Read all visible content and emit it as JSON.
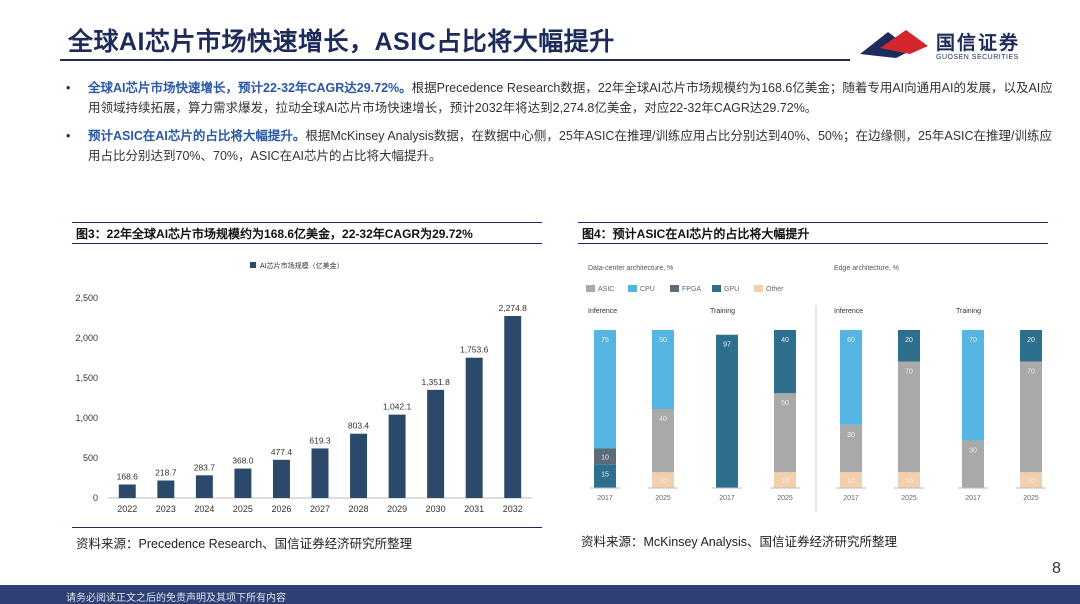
{
  "header": {
    "title": "全球AI芯片市场快速增长，ASIC占比将大幅提升",
    "logo_name": "国信证券",
    "logo_sub": "GUOSEN SECURITIES",
    "colors": {
      "navy": "#1c2b5a",
      "red": "#d6262d",
      "accent_blue": "#2a57a8"
    }
  },
  "bullets": [
    {
      "lead": "全球AI芯片市场快速增长，预计22-32年CAGR达29.72%。",
      "text": "根据Precedence Research数据，22年全球AI芯片市场规模约为168.6亿美金；随着专用AI向通用AI的发展，以及AI应用领域持续拓展，算力需求爆发，拉动全球AI芯片市场快速增长，预计2032年将达到2,274.8亿美金，对应22-32年CAGR达29.72%。"
    },
    {
      "lead": "预计ASIC在AI芯片的占比将大幅提升。",
      "text": "根据McKinsey Analysis数据，在数据中心侧，25年ASIC在推理/训练应用占比分别达到40%、50%；在边缘侧，25年ASIC在推理/训练应用占比分别达到70%、70%，ASIC在AI芯片的占比将大幅提升。"
    }
  ],
  "figure3": {
    "title": "图3：22年全球AI芯片市场规模约为168.6亿美金，22-32年CAGR为29.72%",
    "source": "资料来源：Precedence Research、国信证券经济研究所整理"
  },
  "figure4": {
    "title": "图4：预计ASIC在AI芯片的占比将大幅提升",
    "source": "资料来源：McKinsey Analysis、国信证券经济研究所整理"
  },
  "chart_data": [
    {
      "type": "bar",
      "categories": [
        "2022",
        "2023",
        "2024",
        "2025",
        "2026",
        "2027",
        "2028",
        "2029",
        "2030",
        "2031",
        "2032"
      ],
      "series": [
        {
          "name": "AI芯片市场规模（亿美金）",
          "values": [
            168.6,
            218.7,
            283.7,
            368.0,
            477.4,
            619.3,
            803.4,
            1042.1,
            1351.8,
            1753.6,
            2274.8
          ]
        }
      ],
      "data_labels": [
        "168.6",
        "218.7",
        "283.7",
        "368.0",
        "477.4",
        "619.3",
        "803.4",
        "1,042.1",
        "1,351.8",
        "1,753.6",
        "2,274.8"
      ],
      "ylim": [
        0,
        2500
      ],
      "yticks": [
        0,
        500,
        1000,
        1500,
        2000,
        2500
      ],
      "ytick_labels": [
        "0",
        "500",
        "1,000",
        "1,500",
        "2,000",
        "2,500"
      ],
      "grid": false,
      "legend": "top-center",
      "color": "#2b4a6b"
    },
    {
      "type": "bar",
      "stacked": true,
      "groups": [
        {
          "name": "Data-center architecture, %",
          "panels": [
            {
              "name": "Inference",
              "categories": [
                "2017",
                "2025"
              ],
              "segments": [
                {
                  "name": "ASIC",
                  "values": [
                    0,
                    40
                  ]
                },
                {
                  "name": "CPU",
                  "values": [
                    75,
                    50
                  ]
                },
                {
                  "name": "FPGA",
                  "values": [
                    10,
                    0
                  ]
                },
                {
                  "name": "GPU",
                  "values": [
                    15,
                    0
                  ]
                },
                {
                  "name": "Other",
                  "values": [
                    0,
                    10
                  ]
                }
              ],
              "labels": [
                [
                  "",
                  "75",
                  "10",
                  "15",
                  ""
                ],
                [
                  "40",
                  "50",
                  "",
                  "",
                  "10"
                ]
              ]
            },
            {
              "name": "Training",
              "categories": [
                "2017",
                "2025"
              ],
              "segments": [
                {
                  "name": "ASIC",
                  "values": [
                    0,
                    50
                  ]
                },
                {
                  "name": "CPU",
                  "values": [
                    0,
                    0
                  ]
                },
                {
                  "name": "FPGA",
                  "values": [
                    0,
                    0
                  ]
                },
                {
                  "name": "GPU",
                  "values": [
                    97,
                    40
                  ]
                },
                {
                  "name": "Other",
                  "values": [
                    0,
                    10
                  ]
                }
              ],
              "labels": [
                [
                  "",
                  "",
                  "",
                  "97",
                  ""
                ],
                [
                  "50",
                  "",
                  "",
                  "40",
                  "10"
                ]
              ]
            }
          ]
        },
        {
          "name": "Edge architecture, %",
          "panels": [
            {
              "name": "Inference",
              "categories": [
                "2017",
                "2025"
              ],
              "segments": [
                {
                  "name": "ASIC",
                  "values": [
                    30,
                    70
                  ]
                },
                {
                  "name": "CPU",
                  "values": [
                    60,
                    0
                  ]
                },
                {
                  "name": "FPGA",
                  "values": [
                    0,
                    0
                  ]
                },
                {
                  "name": "GPU",
                  "values": [
                    0,
                    20
                  ]
                },
                {
                  "name": "Other",
                  "values": [
                    10,
                    10
                  ]
                }
              ],
              "labels": [
                [
                  "30",
                  "60",
                  "",
                  "",
                  "10"
                ],
                [
                  "70",
                  "",
                  "",
                  "20",
                  "10"
                ]
              ]
            },
            {
              "name": "Training",
              "categories": [
                "2017",
                "2025"
              ],
              "segments": [
                {
                  "name": "ASIC",
                  "values": [
                    30,
                    70
                  ]
                },
                {
                  "name": "CPU",
                  "values": [
                    70,
                    0
                  ]
                },
                {
                  "name": "FPGA",
                  "values": [
                    0,
                    0
                  ]
                },
                {
                  "name": "GPU",
                  "values": [
                    0,
                    20
                  ]
                },
                {
                  "name": "Other",
                  "values": [
                    0,
                    10
                  ]
                }
              ],
              "labels": [
                [
                  "30",
                  "70",
                  "",
                  "",
                  ""
                ],
                [
                  "70",
                  "",
                  "",
                  "20",
                  "10"
                ]
              ]
            }
          ]
        }
      ],
      "legend": [
        "ASIC",
        "CPU",
        "FPGA",
        "GPU",
        "Other"
      ],
      "colors": {
        "ASIC": "#a9a9a9",
        "CPU": "#56b4e0",
        "FPGA": "#5d6b78",
        "GPU": "#2e6f8e",
        "Other": "#f3cfae"
      }
    }
  ],
  "page": {
    "number": "8",
    "footer": "请务必阅读正文之后的免责声明及其项下所有内容"
  }
}
